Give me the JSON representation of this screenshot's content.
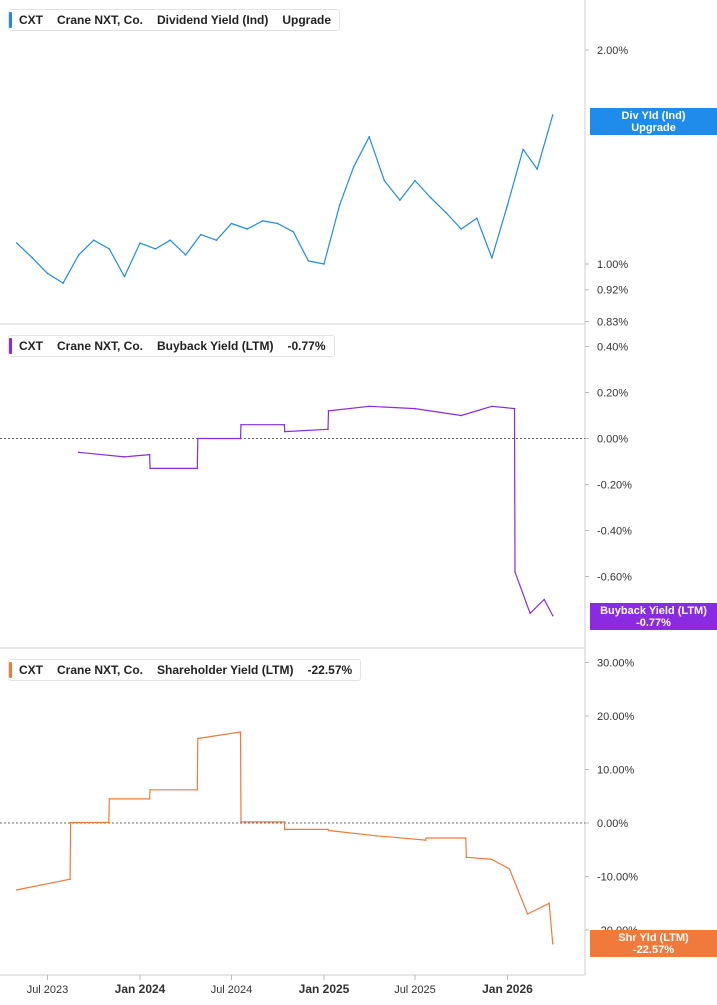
{
  "ticker": "CXT",
  "company": "Crane NXT, Co.",
  "panels": [
    {
      "metric": "Dividend Yield (Ind)",
      "value_text": "Upgrade",
      "tag_line1": "Div Yld (Ind)",
      "tag_line2": "Upgrade",
      "color": "#1f8ceb"
    },
    {
      "metric": "Buyback Yield (LTM)",
      "value_text": "-0.77%",
      "tag_line1": "Buyback Yield (LTM)",
      "tag_line2": "-0.77%",
      "color": "#8a2be2"
    },
    {
      "metric": "Shareholder Yield (LTM)",
      "value_text": "-22.57%",
      "tag_line1": "Shr Yld (LTM)",
      "tag_line2": "-22.57%",
      "color": "#f07a3c"
    }
  ],
  "chart_data": [
    {
      "type": "line",
      "title": "CXT Crane NXT, Co. Dividend Yield (Ind) Upgrade",
      "scale": "log",
      "ylim": [
        0.83,
        2.35
      ],
      "y_ticks": [
        "2.00%",
        "1.00%",
        "0.92%",
        "0.83%"
      ],
      "x_ticks": [
        "Jul 2023",
        "Jan 2024",
        "Jul 2024",
        "Jan 2025",
        "Jul 2025",
        "Jan 2026"
      ],
      "series": [
        {
          "x": [
            "2023-05-01",
            "2023-06-01",
            "2023-07-01",
            "2023-08-01",
            "2023-09-01",
            "2023-10-01",
            "2023-11-01",
            "2023-12-01",
            "2024-01-01",
            "2024-02-01",
            "2024-03-01",
            "2024-04-01",
            "2024-05-01",
            "2024-06-01",
            "2024-07-01",
            "2024-08-01",
            "2024-09-01",
            "2024-10-01",
            "2024-11-01",
            "2024-12-01",
            "2025-01-01",
            "2025-02-01",
            "2025-03-01",
            "2025-04-01",
            "2025-05-01",
            "2025-06-01",
            "2025-07-01",
            "2025-08-01",
            "2025-09-01",
            "2025-10-01",
            "2025-11-01",
            "2025-12-01",
            "2026-01-01",
            "2026-02-01",
            "2026-03-01",
            "2026-04-01"
          ],
          "values": [
            1.07,
            1.02,
            0.97,
            0.94,
            1.03,
            1.08,
            1.05,
            0.96,
            1.07,
            1.05,
            1.08,
            1.03,
            1.1,
            1.08,
            1.14,
            1.12,
            1.15,
            1.14,
            1.11,
            1.01,
            1.0,
            1.21,
            1.37,
            1.51,
            1.31,
            1.23,
            1.31,
            1.24,
            1.18,
            1.12,
            1.16,
            1.02,
            1.21,
            1.45,
            1.36,
            1.62
          ]
        }
      ]
    },
    {
      "type": "line",
      "title": "CXT Crane NXT, Co. Buyback Yield (LTM) -0.77%",
      "ylim": [
        -0.8,
        0.45
      ],
      "y_ticks": [
        "0.40%",
        "0.20%",
        "0.00%",
        "-0.20%",
        "-0.40%",
        "-0.60%"
      ],
      "reference_line": 0,
      "series": [
        {
          "x": [
            "2023-09-01",
            "2023-12-01",
            "2024-01-20",
            "2024-01-21",
            "2024-04-24",
            "2024-04-25",
            "2024-07-19",
            "2024-07-20",
            "2024-10-14",
            "2024-10-15",
            "2025-01-09",
            "2025-01-10",
            "2025-04-01",
            "2025-07-01",
            "2025-10-01",
            "2025-12-01",
            "2026-01-15",
            "2026-01-16",
            "2026-02-15",
            "2026-03-15",
            "2026-04-01"
          ],
          "values": [
            -0.06,
            -0.08,
            -0.07,
            -0.13,
            -0.13,
            0.0,
            0.0,
            0.06,
            0.06,
            0.03,
            0.04,
            0.12,
            0.14,
            0.13,
            0.1,
            0.14,
            0.13,
            -0.58,
            -0.76,
            -0.7,
            -0.77
          ]
        }
      ]
    },
    {
      "type": "line",
      "title": "CXT Crane NXT, Co. Shareholder Yield (LTM) -22.57%",
      "ylim": [
        -29,
        34
      ],
      "y_ticks": [
        "30.00%",
        "20.00%",
        "10.00%",
        "0.00%",
        "-10.00%",
        "-20.00%"
      ],
      "reference_line": 0,
      "series": [
        {
          "x": [
            "2023-05-01",
            "2023-08-15",
            "2023-08-16",
            "2023-10-31",
            "2023-11-01",
            "2024-01-20",
            "2024-01-21",
            "2024-04-24",
            "2024-04-25",
            "2024-07-19",
            "2024-07-20",
            "2024-10-14",
            "2024-10-15",
            "2025-01-09",
            "2025-01-10",
            "2025-04-15",
            "2025-07-22",
            "2025-07-23",
            "2025-10-10",
            "2025-10-11",
            "2025-12-01",
            "2026-01-05",
            "2026-02-10",
            "2026-03-25",
            "2026-04-01"
          ],
          "values": [
            -12.5,
            -10.5,
            0.1,
            0.1,
            4.5,
            4.5,
            6.2,
            6.2,
            15.8,
            17.0,
            0.2,
            0.2,
            -1.2,
            -1.2,
            -1.4,
            -2.4,
            -3.2,
            -2.8,
            -2.8,
            -6.4,
            -6.8,
            -8.6,
            -17.0,
            -15.0,
            -22.57
          ]
        }
      ]
    }
  ]
}
